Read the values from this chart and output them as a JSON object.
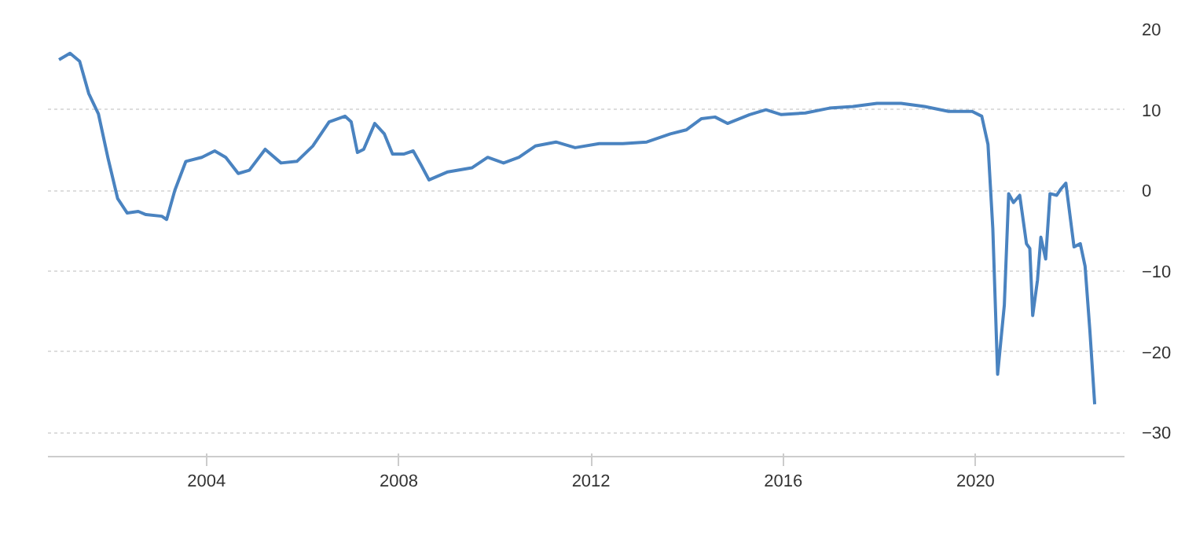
{
  "chart_data": {
    "type": "line",
    "x": [
      2000.93,
      2001.16,
      2001.36,
      2001.55,
      2001.75,
      2001.95,
      2002.15,
      2002.35,
      2002.58,
      2002.74,
      2003.07,
      2003.17,
      2003.34,
      2003.57,
      2003.9,
      2004.17,
      2004.4,
      2004.66,
      2004.89,
      2005.22,
      2005.55,
      2005.88,
      2006.21,
      2006.55,
      2006.88,
      2007.01,
      2007.14,
      2007.27,
      2007.5,
      2007.7,
      2007.87,
      2008.1,
      2008.3,
      2008.46,
      2008.63,
      2009.02,
      2009.52,
      2009.85,
      2010.18,
      2010.5,
      2010.84,
      2011.27,
      2011.67,
      2012.17,
      2012.66,
      2013.16,
      2013.65,
      2013.98,
      2014.3,
      2014.58,
      2014.84,
      2015.3,
      2015.64,
      2015.96,
      2016.46,
      2016.96,
      2017.45,
      2017.95,
      2018.45,
      2018.94,
      2019.44,
      2019.93,
      2020.13,
      2020.26,
      2020.36,
      2020.46,
      2020.6,
      2020.69,
      2020.79,
      2020.92,
      2021.06,
      2021.13,
      2021.19,
      2021.29,
      2021.36,
      2021.46,
      2021.55,
      2021.69,
      2021.78,
      2021.88,
      2022.05,
      2022.18,
      2022.28,
      2022.38,
      2022.48
    ],
    "series": [
      {
        "color": "#4a83c0",
        "values": [
          16.2,
          17,
          16,
          12,
          9.5,
          4,
          -1,
          -2.8,
          -2.6,
          -3,
          -3.2,
          -3.6,
          0,
          3.6,
          4.1,
          4.9,
          4.1,
          2.1,
          2.5,
          5.1,
          3.4,
          3.6,
          5.5,
          8.5,
          9.2,
          8.5,
          4.7,
          5.1,
          8.3,
          7,
          4.5,
          4.5,
          4.9,
          3.2,
          1.3,
          2.3,
          2.8,
          4.1,
          3.4,
          4.1,
          5.5,
          6,
          5.3,
          5.8,
          5.8,
          6,
          7,
          7.5,
          8.9,
          9.1,
          8.3,
          9.4,
          10,
          9.4,
          9.6,
          10.2,
          10.4,
          10.8,
          10.8,
          10.4,
          9.8,
          9.8,
          9.2,
          5.7,
          -4.7,
          -22.8,
          -14.2,
          -0.4,
          -1.5,
          -0.6,
          -6.6,
          -7.2,
          -15.5,
          -11.1,
          -5.8,
          -8.5,
          -0.4,
          -0.6,
          0.2,
          0.9,
          -7,
          -6.6,
          -9.4,
          -17.4,
          -26.5
        ]
      }
    ],
    "xlim": [
      2000.7,
      2023.1
    ],
    "xticks": [
      2004,
      2008,
      2012,
      2016,
      2020
    ],
    "ylim": [
      -33,
      20
    ],
    "yticks": [
      -30,
      -20,
      -10,
      0,
      10,
      20
    ],
    "grid": "y",
    "marker": "none",
    "line_style": "solid"
  }
}
